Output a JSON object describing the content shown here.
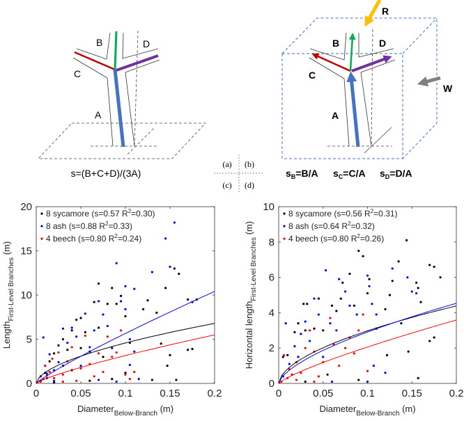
{
  "panel_labels": {
    "a": "(a)",
    "b": "(b)",
    "c": "(c)",
    "d": "(d)"
  },
  "diagram_a": {
    "labels": {
      "A": "A",
      "B": "B",
      "C": "C",
      "D": "D"
    },
    "formula": "s=(B+C+D)/(3A)",
    "colors": {
      "A": "#4472c4",
      "B": "#00b050",
      "C": "#c00000",
      "D": "#7030a0"
    }
  },
  "diagram_b": {
    "labels": {
      "A": "A",
      "B": "B",
      "C": "C",
      "D": "D",
      "R": "R",
      "W": "W"
    },
    "formulas": [
      {
        "s": "s",
        "sub": "B",
        "rest": "=B/A"
      },
      {
        "s": "s",
        "sub": "C",
        "rest": "=C/A"
      },
      {
        "s": "s",
        "sub": "D",
        "rest": "=D/A"
      }
    ],
    "colors": {
      "R": "#ffc000",
      "W": "#808080",
      "cube": "#4472c4"
    }
  },
  "chart_data": [
    {
      "type": "scatter",
      "panel": "c",
      "ylabel_main": "Length",
      "ylabel_sub": "First-Level Branches",
      "ylabel_unit": " (m)",
      "xlabel_main": "Diameter",
      "xlabel_sub": "Below-Branch",
      "xlabel_unit": " (m)",
      "xlim": [
        0,
        0.2
      ],
      "ylim": [
        0,
        20
      ],
      "xticks": [
        "0",
        "0.05",
        "0.1",
        "0.15",
        "0.2"
      ],
      "xtick_values": [
        0,
        0.05,
        0.1,
        0.15,
        0.2
      ],
      "yticks": [
        "0",
        "5",
        "10",
        "15",
        "20"
      ],
      "ytick_values": [
        0,
        5,
        10,
        15,
        20
      ],
      "legend_position": "top-left",
      "series": [
        {
          "name": "8 sycamore (s=0.57 R",
          "r2": "=0.30)",
          "color": "#000000",
          "fit": {
            "a": 17.0,
            "s": 0.57
          },
          "points": [
            [
              0.005,
              0.3
            ],
            [
              0.01,
              1.2
            ],
            [
              0.015,
              2.5
            ],
            [
              0.02,
              3.4
            ],
            [
              0.025,
              4.3
            ],
            [
              0.03,
              5.0
            ],
            [
              0.03,
              2.0
            ],
            [
              0.035,
              3.8
            ],
            [
              0.04,
              6.0
            ],
            [
              0.045,
              7.2
            ],
            [
              0.05,
              7.4
            ],
            [
              0.05,
              4.0
            ],
            [
              0.055,
              5.8
            ],
            [
              0.06,
              3.6
            ],
            [
              0.065,
              9.2
            ],
            [
              0.07,
              11.3
            ],
            [
              0.07,
              6.3
            ],
            [
              0.075,
              3.0
            ],
            [
              0.08,
              9.0
            ],
            [
              0.085,
              10.8
            ],
            [
              0.09,
              9.0
            ],
            [
              0.095,
              9.9
            ],
            [
              0.1,
              7.6
            ],
            [
              0.1,
              1.2
            ],
            [
              0.105,
              4.6
            ],
            [
              0.12,
              8.4
            ],
            [
              0.125,
              9.4
            ],
            [
              0.13,
              0.4
            ],
            [
              0.135,
              8.0
            ],
            [
              0.14,
              4.5
            ],
            [
              0.145,
              10.8
            ],
            [
              0.15,
              3.2
            ],
            [
              0.155,
              13.0
            ],
            [
              0.16,
              12.4
            ],
            [
              0.17,
              9.5
            ],
            [
              0.17,
              3.8
            ],
            [
              0.175,
              3.9
            ],
            [
              0.18,
              9.5
            ],
            [
              0.157,
              0.4
            ],
            [
              0.147,
              2.0
            ],
            [
              0.085,
              0.5
            ],
            [
              0.06,
              0.3
            ],
            [
              0.02,
              0.1
            ],
            [
              0.012,
              0.6
            ],
            [
              0.04,
              1.5
            ]
          ]
        },
        {
          "name": "8 ash (s=0.88 R",
          "r2": "=0.33)",
          "color": "#0000ff",
          "fit": {
            "a": 42.9,
            "s": 0.88
          },
          "points": [
            [
              0.005,
              0.8
            ],
            [
              0.008,
              5.2
            ],
            [
              0.01,
              2.0
            ],
            [
              0.015,
              3.3
            ],
            [
              0.02,
              1.5
            ],
            [
              0.025,
              2.4
            ],
            [
              0.03,
              6.2
            ],
            [
              0.035,
              4.6
            ],
            [
              0.04,
              6.3
            ],
            [
              0.045,
              5.3
            ],
            [
              0.05,
              2.0
            ],
            [
              0.055,
              7.9
            ],
            [
              0.06,
              4.1
            ],
            [
              0.065,
              6.0
            ],
            [
              0.07,
              9.3
            ],
            [
              0.075,
              7.8
            ],
            [
              0.08,
              6.5
            ],
            [
              0.085,
              4.0
            ],
            [
              0.09,
              13.6
            ],
            [
              0.095,
              9.3
            ],
            [
              0.1,
              11.0
            ],
            [
              0.1,
              8.4
            ],
            [
              0.105,
              5.0
            ],
            [
              0.11,
              10.7
            ],
            [
              0.11,
              3.6
            ],
            [
              0.13,
              12.6
            ],
            [
              0.145,
              16.4
            ],
            [
              0.15,
              13.2
            ],
            [
              0.155,
              18.2
            ],
            [
              0.175,
              9.2
            ],
            [
              0.09,
              0.2
            ],
            [
              0.105,
              2.1
            ],
            [
              0.115,
              0.5
            ],
            [
              0.07,
              0.4
            ],
            [
              0.02,
              0.3
            ],
            [
              0.012,
              1.1
            ]
          ]
        },
        {
          "name": "4 beech (s=0.80 R",
          "r2": "=0.24)",
          "color": "#ff0000",
          "fit": {
            "a": 19.9,
            "s": 0.8
          },
          "points": [
            [
              0.005,
              0.2
            ],
            [
              0.008,
              0.5
            ],
            [
              0.01,
              2.0
            ],
            [
              0.012,
              0.9
            ],
            [
              0.015,
              1.3
            ],
            [
              0.02,
              0.6
            ],
            [
              0.025,
              3.5
            ],
            [
              0.03,
              1.0
            ],
            [
              0.035,
              2.5
            ],
            [
              0.04,
              4.1
            ],
            [
              0.045,
              0.3
            ],
            [
              0.05,
              1.7
            ],
            [
              0.055,
              5.4
            ],
            [
              0.06,
              2.2
            ],
            [
              0.065,
              0.8
            ],
            [
              0.07,
              3.4
            ],
            [
              0.075,
              1.3
            ],
            [
              0.08,
              5.3
            ],
            [
              0.085,
              3.0
            ],
            [
              0.09,
              3.5
            ],
            [
              0.095,
              6.0
            ],
            [
              0.1,
              1.0
            ],
            [
              0.105,
              0.5
            ],
            [
              0.11,
              1.3
            ],
            [
              0.03,
              0.2
            ],
            [
              0.018,
              2.8
            ]
          ]
        }
      ]
    },
    {
      "type": "scatter",
      "panel": "d",
      "ylabel_main": "Horizontal length",
      "ylabel_sub": "First-Level Branches",
      "ylabel_unit": " (m)",
      "xlabel_main": "Diameter",
      "xlabel_sub": "Below-Branch",
      "xlabel_unit": " (m)",
      "xlim": [
        0,
        0.2
      ],
      "ylim": [
        0,
        10
      ],
      "xticks": [
        "0",
        "0.05",
        "0.1",
        "0.15",
        "0.2"
      ],
      "xtick_values": [
        0,
        0.05,
        0.1,
        0.15,
        0.2
      ],
      "yticks": [
        "0",
        "2",
        "4",
        "6",
        "8",
        "10"
      ],
      "ytick_values": [
        0,
        2,
        4,
        6,
        8,
        10
      ],
      "legend_position": "top-left",
      "series": [
        {
          "name": "8 sycamore (s=0.56 R",
          "r2": "=0.31)",
          "color": "#000000",
          "fit": {
            "a": 10.8,
            "s": 0.56
          },
          "points": [
            [
              0.005,
              1.5
            ],
            [
              0.01,
              1.6
            ],
            [
              0.015,
              0.5
            ],
            [
              0.018,
              2.9
            ],
            [
              0.022,
              3.4
            ],
            [
              0.028,
              4.5
            ],
            [
              0.03,
              3.0
            ],
            [
              0.032,
              4.5
            ],
            [
              0.04,
              3.1
            ],
            [
              0.045,
              4.8
            ],
            [
              0.05,
              3.0
            ],
            [
              0.055,
              0.5
            ],
            [
              0.06,
              4.4
            ],
            [
              0.065,
              4.1
            ],
            [
              0.07,
              4.8
            ],
            [
              0.072,
              5.7
            ],
            [
              0.08,
              6.2
            ],
            [
              0.085,
              4.4
            ],
            [
              0.09,
              7.5
            ],
            [
              0.095,
              7.2
            ],
            [
              0.1,
              5.1
            ],
            [
              0.102,
              5.9
            ],
            [
              0.11,
              3.1
            ],
            [
              0.12,
              4.2
            ],
            [
              0.125,
              5.0
            ],
            [
              0.128,
              5.8
            ],
            [
              0.135,
              6.9
            ],
            [
              0.138,
              3.4
            ],
            [
              0.144,
              8.1
            ],
            [
              0.146,
              1.8
            ],
            [
              0.155,
              5.7
            ],
            [
              0.157,
              5.4
            ],
            [
              0.16,
              4.6
            ],
            [
              0.17,
              6.7
            ],
            [
              0.175,
              6.6
            ],
            [
              0.182,
              6.0
            ],
            [
              0.17,
              2.4
            ],
            [
              0.175,
              2.6
            ],
            [
              0.157,
              0.3
            ],
            [
              0.122,
              1.6
            ],
            [
              0.09,
              0.2
            ],
            [
              0.03,
              0.1
            ]
          ]
        },
        {
          "name": "8 ash (s=0.64 R",
          "r2": "=0.32)",
          "color": "#0000ff",
          "fit": {
            "a": 12.7,
            "s": 0.64
          },
          "points": [
            [
              0.005,
              0.4
            ],
            [
              0.008,
              3.4
            ],
            [
              0.012,
              1.1
            ],
            [
              0.018,
              2.1
            ],
            [
              0.022,
              1.5
            ],
            [
              0.025,
              2.8
            ],
            [
              0.03,
              3.5
            ],
            [
              0.035,
              2.4
            ],
            [
              0.04,
              4.8
            ],
            [
              0.045,
              3.9
            ],
            [
              0.05,
              1.5
            ],
            [
              0.053,
              6.4
            ],
            [
              0.058,
              3.4
            ],
            [
              0.065,
              3.0
            ],
            [
              0.068,
              5.9
            ],
            [
              0.075,
              5.2
            ],
            [
              0.08,
              4.4
            ],
            [
              0.088,
              3.9
            ],
            [
              0.1,
              6.1
            ],
            [
              0.102,
              5.5
            ],
            [
              0.105,
              4.5
            ],
            [
              0.11,
              3.9
            ],
            [
              0.12,
              0.6
            ],
            [
              0.128,
              6.5
            ],
            [
              0.145,
              6.0
            ],
            [
              0.15,
              5.2
            ],
            [
              0.155,
              5.1
            ],
            [
              0.1,
              0.1
            ],
            [
              0.06,
              0.1
            ],
            [
              0.107,
              1.0
            ]
          ]
        },
        {
          "name": "4 beech (s=0.80 R",
          "r2": "=0.26)",
          "color": "#ff0000",
          "fit": {
            "a": 13.0,
            "s": 0.8
          },
          "points": [
            [
              0.003,
              0.1
            ],
            [
              0.006,
              1.6
            ],
            [
              0.01,
              0.3
            ],
            [
              0.012,
              0.8
            ],
            [
              0.015,
              0.5
            ],
            [
              0.02,
              1.2
            ],
            [
              0.025,
              0.6
            ],
            [
              0.03,
              2.0
            ],
            [
              0.035,
              3.0
            ],
            [
              0.04,
              1.8
            ],
            [
              0.045,
              0.4
            ],
            [
              0.05,
              1.2
            ],
            [
              0.058,
              3.7
            ],
            [
              0.062,
              2.2
            ],
            [
              0.068,
              1.0
            ],
            [
              0.075,
              2.0
            ],
            [
              0.08,
              2.6
            ],
            [
              0.085,
              1.7
            ],
            [
              0.09,
              3.0
            ],
            [
              0.095,
              3.9
            ],
            [
              0.1,
              0.7
            ],
            [
              0.04,
              0.1
            ],
            [
              0.02,
              0.2
            ]
          ]
        }
      ]
    }
  ]
}
